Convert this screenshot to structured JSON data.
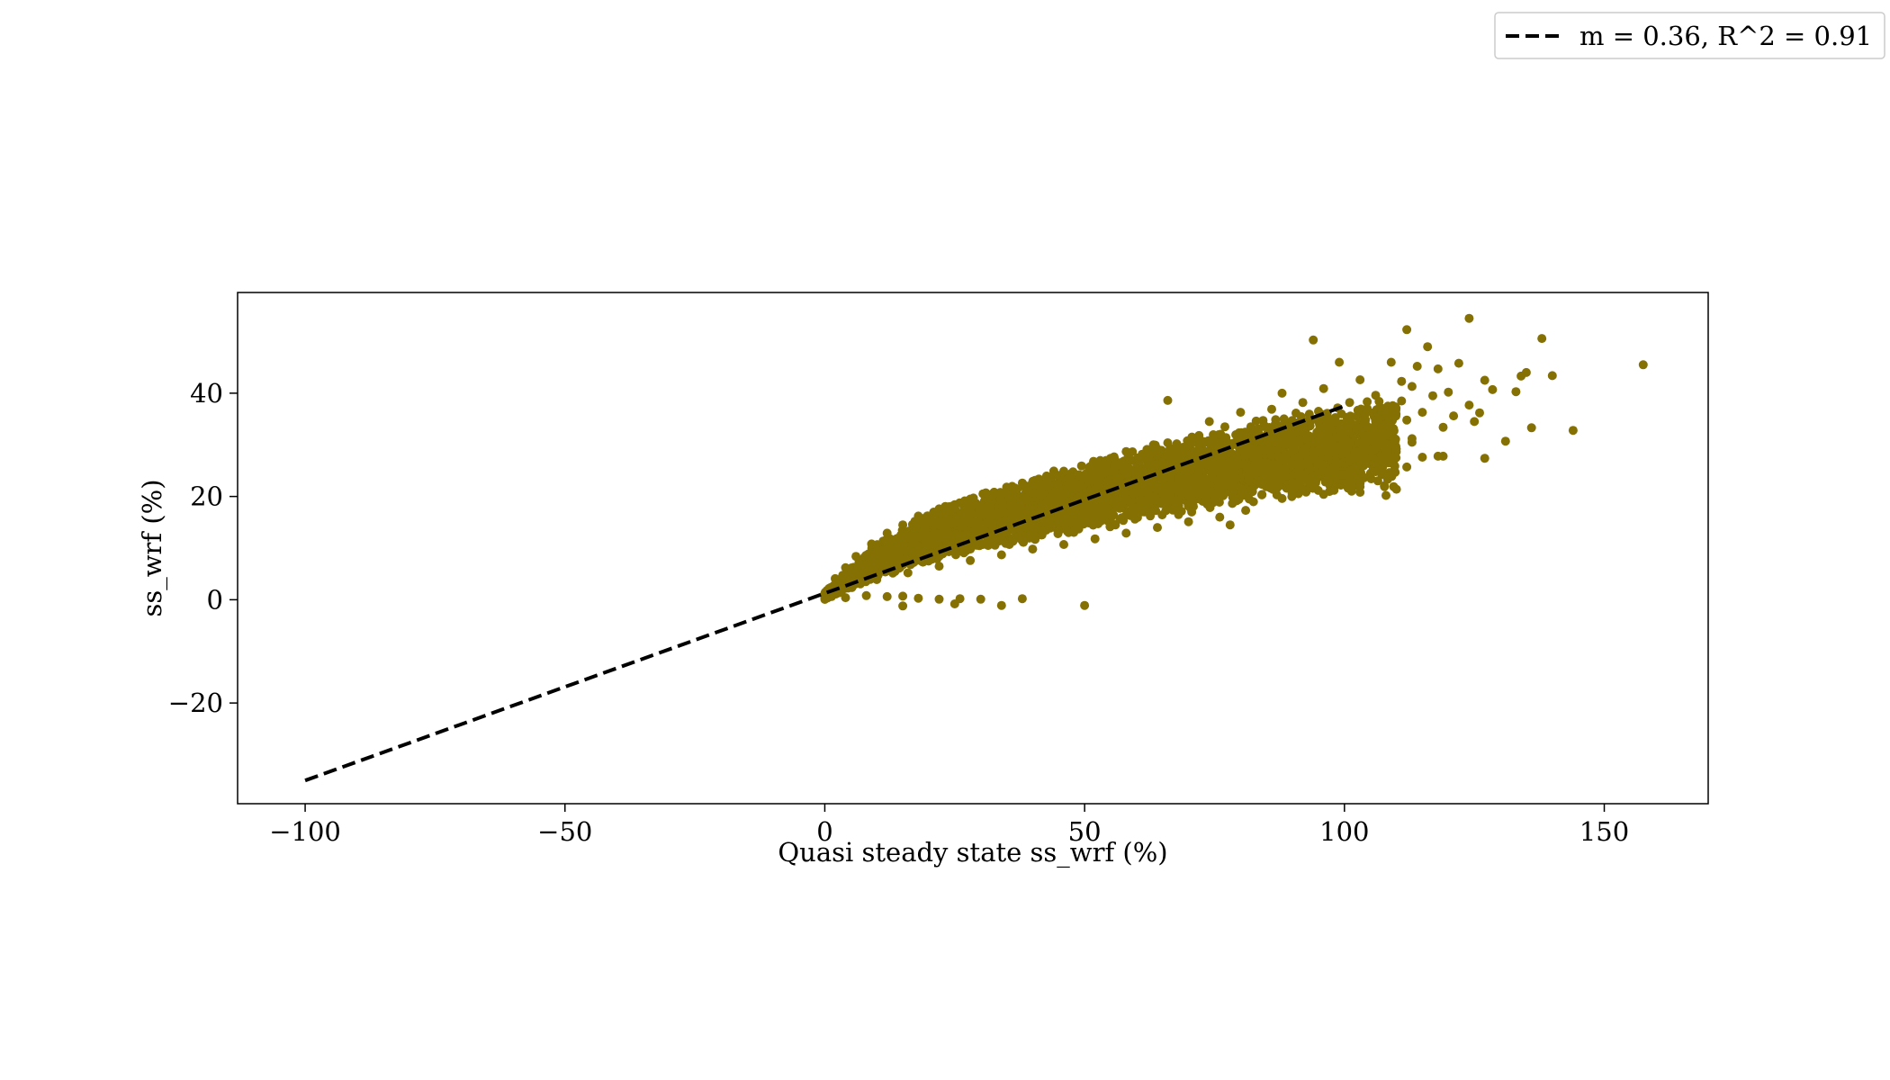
{
  "chart_data": {
    "type": "scatter",
    "title": "",
    "xlabel": "Quasi steady state ss_wrf (%)",
    "ylabel": "ss_wrf (%)",
    "xlim": [
      -113,
      170
    ],
    "ylim": [
      -39.5,
      59.5
    ],
    "xticks": [
      -100,
      -50,
      0,
      50,
      100,
      150
    ],
    "yticks": [
      -20,
      0,
      20,
      40
    ],
    "xtick_labels": [
      "−100",
      "−50",
      "0",
      "50",
      "100",
      "150"
    ],
    "ytick_labels": [
      "−20",
      "0",
      "20",
      "40"
    ],
    "grid": false,
    "marker_color": "#857004",
    "legend": {
      "placement": "top-right",
      "entries": [
        {
          "label": "m = 0.36, R^2 = 0.91",
          "style": "dashed-line",
          "color": "#000000"
        }
      ]
    },
    "fit_line": {
      "slope": 0.36,
      "r2": 0.91,
      "points": [
        [
          -100,
          -35
        ],
        [
          100,
          37.5
        ]
      ],
      "style": "dashed",
      "color": "#000000"
    },
    "points": [
      [
        124,
        54.5
      ],
      [
        112,
        52.3
      ],
      [
        138,
        50.6
      ],
      [
        94,
        50.3
      ],
      [
        116,
        49
      ],
      [
        99,
        46
      ],
      [
        122,
        45.8
      ],
      [
        157.5,
        45.5
      ],
      [
        109,
        46
      ],
      [
        114,
        45.2
      ],
      [
        118,
        44.7
      ],
      [
        135,
        44
      ],
      [
        134,
        43.3
      ],
      [
        140,
        43.4
      ],
      [
        103,
        42.6
      ],
      [
        111,
        42.3
      ],
      [
        127,
        42.5
      ],
      [
        113,
        41.3
      ],
      [
        128.5,
        40.7
      ],
      [
        133,
        40.3
      ],
      [
        120,
        40.2
      ],
      [
        96,
        40.9
      ],
      [
        106,
        39.6
      ],
      [
        117,
        39.5
      ],
      [
        124,
        37.7
      ],
      [
        136,
        33.3
      ],
      [
        144,
        32.8
      ],
      [
        125,
        34.5
      ],
      [
        131,
        30.7
      ],
      [
        126,
        36.2
      ],
      [
        119,
        33.4
      ],
      [
        115,
        36.3
      ],
      [
        121,
        35.6
      ],
      [
        127,
        27.4
      ],
      [
        118,
        27.8
      ],
      [
        119,
        27.8
      ],
      [
        106,
        29.3
      ],
      [
        104,
        26.7
      ],
      [
        108,
        28.3
      ],
      [
        112,
        25.7
      ],
      [
        100,
        24.2
      ],
      [
        106,
        24.8
      ],
      [
        110,
        21.4
      ],
      [
        108,
        20.2
      ],
      [
        103,
        21.9
      ],
      [
        98,
        21.2
      ],
      [
        88,
        19.6
      ],
      [
        96,
        20.4
      ],
      [
        103,
        20.8
      ],
      [
        87,
        20.3
      ],
      [
        92,
        21.5
      ],
      [
        115,
        27.6
      ],
      [
        113,
        30.5
      ],
      [
        109,
        32.5
      ],
      [
        112,
        34.8
      ],
      [
        113,
        31.2
      ],
      [
        111,
        38.5
      ],
      [
        101,
        38.2
      ],
      [
        104,
        35.9
      ],
      [
        107,
        37.2
      ],
      [
        95,
        36.5
      ],
      [
        90,
        34.1
      ],
      [
        97,
        32.8
      ],
      [
        101,
        30.4
      ],
      [
        99,
        26.3
      ],
      [
        91,
        27.6
      ],
      [
        89,
        25.1
      ],
      [
        94,
        23.8
      ],
      [
        85,
        22.7
      ],
      [
        82,
        24.5
      ],
      [
        86,
        28.2
      ],
      [
        79,
        30.1
      ],
      [
        83,
        34.6
      ],
      [
        77,
        33.5
      ],
      [
        72,
        31.8
      ],
      [
        66,
        30.4
      ],
      [
        62,
        29.1
      ],
      [
        58,
        28.7
      ],
      [
        55,
        27.4
      ],
      [
        52,
        26.2
      ],
      [
        46,
        24.9
      ],
      [
        43,
        23.8
      ],
      [
        38,
        22.6
      ],
      [
        35,
        21.8
      ],
      [
        31,
        20.7
      ],
      [
        28,
        19.5
      ],
      [
        25,
        18.4
      ],
      [
        22,
        17.6
      ],
      [
        18,
        16.2
      ],
      [
        15,
        14.5
      ],
      [
        12,
        12.9
      ],
      [
        9,
        10.8
      ],
      [
        6,
        8.4
      ],
      [
        4,
        6.2
      ],
      [
        2,
        4.1
      ],
      [
        1,
        2.3
      ],
      [
        4,
        0.4
      ],
      [
        8,
        0.8
      ],
      [
        12,
        0.6
      ],
      [
        15,
        0.7
      ],
      [
        18,
        0.3
      ],
      [
        22,
        0.1
      ],
      [
        26,
        0.2
      ],
      [
        30,
        0.1
      ],
      [
        15,
        -1.2
      ],
      [
        25,
        -0.8
      ],
      [
        34,
        -1.1
      ],
      [
        38,
        0.2
      ],
      [
        50,
        -1.1
      ],
      [
        66,
        38.6
      ],
      [
        88,
        40
      ],
      [
        86,
        36.9
      ],
      [
        92,
        38.2
      ],
      [
        74,
        34.5
      ],
      [
        80,
        36.3
      ],
      [
        78,
        14.5
      ],
      [
        81,
        17.3
      ],
      [
        76,
        16
      ],
      [
        70,
        15.1
      ],
      [
        64,
        14
      ],
      [
        58,
        12.9
      ],
      [
        52,
        11.8
      ],
      [
        46,
        10.7
      ],
      [
        40,
        9.8
      ],
      [
        34,
        8.7
      ],
      [
        28,
        7.6
      ],
      [
        22,
        6.5
      ],
      [
        16,
        5.2
      ],
      [
        10,
        3.9
      ],
      [
        5,
        2.5
      ]
    ],
    "dense_region": {
      "description_hidden": true,
      "upper": [
        [
          0,
          1.5
        ],
        [
          10,
          11
        ],
        [
          20,
          17
        ],
        [
          30,
          21
        ],
        [
          40,
          24
        ],
        [
          50,
          27
        ],
        [
          60,
          29.5
        ],
        [
          70,
          32
        ],
        [
          80,
          34
        ],
        [
          90,
          36.5
        ],
        [
          100,
          38
        ],
        [
          110,
          39
        ]
      ],
      "lower": [
        [
          0,
          0
        ],
        [
          10,
          4
        ],
        [
          20,
          7
        ],
        [
          30,
          9.5
        ],
        [
          40,
          11
        ],
        [
          50,
          13
        ],
        [
          60,
          15
        ],
        [
          70,
          16.5
        ],
        [
          80,
          18
        ],
        [
          90,
          19.5
        ],
        [
          100,
          20.5
        ],
        [
          110,
          21
        ]
      ]
    }
  }
}
